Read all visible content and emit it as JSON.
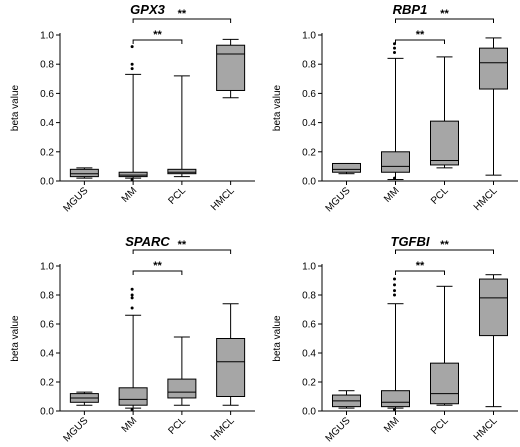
{
  "chart_data": [
    {
      "type": "box",
      "title": "GPX3",
      "ylabel": "beta value",
      "ylim": [
        0,
        1.0
      ],
      "yticks": [
        "0.0",
        "0.2",
        "0.4",
        "0.6",
        "0.8",
        "1.0"
      ],
      "categories": [
        "MGUS",
        "MM",
        "PCL",
        "HMCL"
      ],
      "boxes": [
        {
          "min": 0.02,
          "q1": 0.03,
          "median": 0.05,
          "q3": 0.08,
          "max": 0.09,
          "outliers": []
        },
        {
          "min": 0.02,
          "q1": 0.03,
          "median": 0.04,
          "q3": 0.06,
          "max": 0.73,
          "outliers": [
            0.77,
            0.8,
            0.92,
            0.01
          ]
        },
        {
          "min": 0.03,
          "q1": 0.05,
          "median": 0.06,
          "q3": 0.08,
          "max": 0.72,
          "outliers": []
        },
        {
          "min": 0.57,
          "q1": 0.62,
          "median": 0.87,
          "q3": 0.93,
          "max": 0.97,
          "outliers": []
        }
      ],
      "significance": [
        {
          "from": 1,
          "to": 2,
          "label": "**"
        },
        {
          "from": 1,
          "to": 3,
          "label": "**"
        }
      ]
    },
    {
      "type": "box",
      "title": "RBP1",
      "ylabel": "beta value",
      "ylim": [
        0,
        1.0
      ],
      "yticks": [
        "0.0",
        "0.2",
        "0.4",
        "0.6",
        "0.8",
        "1.0"
      ],
      "categories": [
        "MGUS",
        "MM",
        "PCL",
        "HMCL"
      ],
      "boxes": [
        {
          "min": 0.05,
          "q1": 0.06,
          "median": 0.08,
          "q3": 0.12,
          "max": 0.12,
          "outliers": []
        },
        {
          "min": 0.01,
          "q1": 0.06,
          "median": 0.1,
          "q3": 0.2,
          "max": 0.84,
          "outliers": [
            0.88,
            0.91,
            0.94,
            0.02
          ]
        },
        {
          "min": 0.09,
          "q1": 0.11,
          "median": 0.14,
          "q3": 0.41,
          "max": 0.85,
          "outliers": []
        },
        {
          "min": 0.04,
          "q1": 0.63,
          "median": 0.81,
          "q3": 0.91,
          "max": 0.98,
          "outliers": []
        }
      ],
      "significance": [
        {
          "from": 1,
          "to": 2,
          "label": "**"
        },
        {
          "from": 1,
          "to": 3,
          "label": "**"
        }
      ]
    },
    {
      "type": "box",
      "title": "SPARC",
      "ylabel": "beta value",
      "ylim": [
        0,
        1.0
      ],
      "yticks": [
        "0.0",
        "0.2",
        "0.4",
        "0.6",
        "0.8",
        "1.0"
      ],
      "categories": [
        "MGUS",
        "MM",
        "PCL",
        "HMCL"
      ],
      "boxes": [
        {
          "min": 0.04,
          "q1": 0.06,
          "median": 0.09,
          "q3": 0.12,
          "max": 0.13,
          "outliers": []
        },
        {
          "min": 0.02,
          "q1": 0.04,
          "median": 0.08,
          "q3": 0.16,
          "max": 0.66,
          "outliers": [
            0.71,
            0.78,
            0.8,
            0.84,
            0.01
          ]
        },
        {
          "min": 0.04,
          "q1": 0.09,
          "median": 0.13,
          "q3": 0.22,
          "max": 0.51,
          "outliers": []
        },
        {
          "min": 0.04,
          "q1": 0.1,
          "median": 0.34,
          "q3": 0.5,
          "max": 0.74,
          "outliers": []
        }
      ],
      "significance": [
        {
          "from": 1,
          "to": 2,
          "label": "**"
        },
        {
          "from": 1,
          "to": 3,
          "label": "**"
        }
      ]
    },
    {
      "type": "box",
      "title": "TGFBI",
      "ylabel": "beta value",
      "ylim": [
        0,
        1.0
      ],
      "yticks": [
        "0.0",
        "0.2",
        "0.4",
        "0.6",
        "0.8",
        "1.0"
      ],
      "categories": [
        "MGUS",
        "MM",
        "PCL",
        "HMCL"
      ],
      "boxes": [
        {
          "min": 0.02,
          "q1": 0.03,
          "median": 0.07,
          "q3": 0.11,
          "max": 0.14,
          "outliers": []
        },
        {
          "min": 0.02,
          "q1": 0.03,
          "median": 0.06,
          "q3": 0.14,
          "max": 0.74,
          "outliers": [
            0.8,
            0.83,
            0.87,
            0.91,
            0.01
          ]
        },
        {
          "min": 0.04,
          "q1": 0.05,
          "median": 0.12,
          "q3": 0.33,
          "max": 0.86,
          "outliers": []
        },
        {
          "min": 0.03,
          "q1": 0.52,
          "median": 0.78,
          "q3": 0.91,
          "max": 0.94,
          "outliers": []
        }
      ],
      "significance": [
        {
          "from": 1,
          "to": 2,
          "label": "**"
        },
        {
          "from": 1,
          "to": 3,
          "label": "**"
        }
      ]
    }
  ]
}
